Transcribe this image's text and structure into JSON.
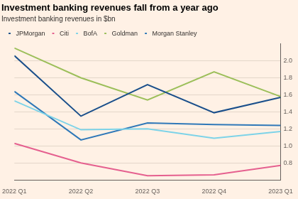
{
  "chart_data": {
    "type": "line",
    "title": "Investment banking revenues fall from a year ago",
    "subtitle": "Investment banking revenues in $bn",
    "categories": [
      "2022 Q1",
      "2022 Q2",
      "2022 Q3",
      "2022 Q4",
      "2023 Q1"
    ],
    "series": [
      {
        "name": "JPMorgan",
        "color": "#1a4f8b",
        "values": [
          2.06,
          1.35,
          1.72,
          1.39,
          1.57
        ]
      },
      {
        "name": "Citi",
        "color": "#e5608f",
        "values": [
          1.03,
          0.8,
          0.65,
          0.66,
          0.77
        ]
      },
      {
        "name": "BofA",
        "color": "#7dd3e8",
        "values": [
          1.53,
          1.19,
          1.2,
          1.09,
          1.17
        ]
      },
      {
        "name": "Goldman",
        "color": "#9cbf5a",
        "values": [
          2.15,
          1.8,
          1.54,
          1.87,
          1.58
        ]
      },
      {
        "name": "Morgan Stanley",
        "color": "#2f78b8",
        "values": [
          1.64,
          1.07,
          1.27,
          1.25,
          1.24
        ]
      }
    ],
    "ylim": [
      0.6,
      2.2
    ],
    "yticks": [
      0.8,
      {
        "value": 1.0,
        "label": "1.0"
      },
      1.2,
      1.4,
      1.6,
      1.8,
      {
        "value": 2.0,
        "label": "2.0"
      }
    ],
    "grid": true,
    "legend": "top-left"
  }
}
